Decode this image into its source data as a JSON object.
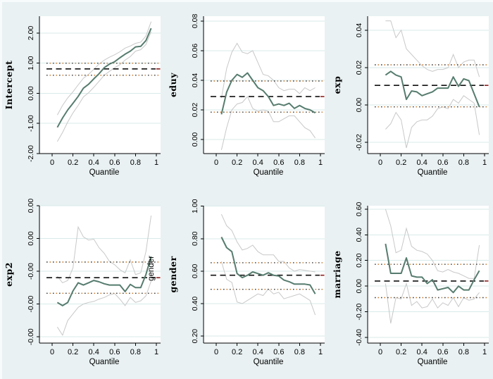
{
  "figure": {
    "background": "#e9f1f2",
    "plot_background": "#ffffff",
    "gridline_color": "#d8eaea",
    "axis_color": "#000000",
    "qr_line_color": "#567c6e",
    "ci_line_color": "#c8c8c8",
    "ols_line_color": "#111111",
    "ols_line_tip_color": "#8b1f1f",
    "ols_ci_dot_color_a": "#3a3a3a",
    "ols_ci_dot_color_b": "#c4762a",
    "window_edge_color": "#f7fbfb"
  },
  "chart_data": {
    "type": "line-panels",
    "layout": "2x3-grid",
    "grid": true,
    "legend": "none",
    "xlabel": "Quantile",
    "x_ticks": [
      0,
      0.2,
      0.4,
      0.6,
      0.8,
      1
    ],
    "x_tick_labels": [
      "0",
      "0.2",
      "0.4",
      "0.6",
      "0.8",
      "1"
    ],
    "x": [
      0.05,
      0.1,
      0.15,
      0.2,
      0.25,
      0.3,
      0.35,
      0.4,
      0.45,
      0.5,
      0.55,
      0.6,
      0.65,
      0.7,
      0.75,
      0.8,
      0.85,
      0.9,
      0.95
    ],
    "panels": [
      {
        "type": "line",
        "name": "Intercept",
        "ylabel": "Intercept",
        "ylim": [
          -2.0,
          2.56
        ],
        "yticks": [
          2,
          1,
          0,
          -1,
          -2
        ],
        "ytick_labels": [
          "2.00",
          "1.00",
          "0.00",
          "-1.00",
          "-2.00"
        ],
        "ols": 0.81,
        "ols_ci_upper": 1.0,
        "ols_ci_lower": 0.6,
        "series": [
          {
            "name": "qr_estimate",
            "values": [
              -1.13,
              -0.82,
              -0.55,
              -0.33,
              -0.1,
              0.17,
              0.3,
              0.48,
              0.65,
              0.85,
              0.97,
              1.05,
              1.18,
              1.3,
              1.4,
              1.54,
              1.56,
              1.75,
              2.16
            ]
          },
          {
            "name": "ci_upper",
            "values": [
              -0.72,
              -0.4,
              -0.15,
              0.05,
              0.28,
              0.5,
              0.63,
              0.8,
              0.97,
              1.1,
              1.2,
              1.28,
              1.38,
              1.5,
              1.57,
              1.66,
              1.7,
              1.9,
              2.38
            ]
          },
          {
            "name": "ci_lower",
            "values": [
              -1.6,
              -1.3,
              -0.95,
              -0.65,
              -0.4,
              -0.12,
              0.02,
              0.2,
              0.4,
              0.6,
              0.73,
              0.85,
              0.95,
              1.1,
              1.22,
              1.4,
              1.45,
              1.62,
              2.05
            ]
          }
        ]
      },
      {
        "type": "line",
        "name": "eduy",
        "ylabel": "eduy",
        "ylim": [
          -0.0095,
          0.0833
        ],
        "yticks": [
          0.08,
          0.06,
          0.04,
          0.02,
          0.0
        ],
        "ytick_labels": [
          "0.08",
          "0.06",
          "0.04",
          "0.02",
          "0.00"
        ],
        "ols": 0.029,
        "ols_ci_upper": 0.0395,
        "ols_ci_lower": 0.0185,
        "series": [
          {
            "name": "qr_estimate",
            "values": [
              0.017,
              0.032,
              0.04,
              0.044,
              0.042,
              0.045,
              0.04,
              0.035,
              0.033,
              0.029,
              0.023,
              0.024,
              0.023,
              0.0245,
              0.021,
              0.023,
              0.021,
              0.02,
              0.018
            ]
          },
          {
            "name": "ci_upper",
            "values": [
              0.028,
              0.048,
              0.059,
              0.065,
              0.059,
              0.058,
              0.06,
              0.052,
              0.044,
              0.043,
              0.04,
              0.035,
              0.033,
              0.034,
              0.034,
              0.031,
              0.035,
              0.033,
              0.035
            ]
          },
          {
            "name": "ci_lower",
            "values": [
              -0.007,
              0.008,
              0.02,
              0.024,
              0.025,
              0.029,
              0.021,
              0.019,
              0.02,
              0.019,
              0.012,
              0.012,
              0.014,
              0.016,
              0.016,
              0.012,
              0.008,
              0.006,
              0.001
            ]
          }
        ]
      },
      {
        "type": "line",
        "name": "exp",
        "ylabel": "exp",
        "ylim": [
          -0.026,
          0.0475
        ],
        "yticks": [
          0.04,
          0.02,
          0.0,
          -0.02
        ],
        "ytick_labels": [
          "0.04",
          "0.02",
          "0.00",
          "-0.02"
        ],
        "ols": 0.0105,
        "ols_ci_upper": 0.0215,
        "ols_ci_lower": -0.001,
        "series": [
          {
            "name": "qr_estimate",
            "values": [
              0.016,
              0.018,
              0.016,
              0.015,
              0.003,
              0.0075,
              0.007,
              0.005,
              0.006,
              0.007,
              0.009,
              0.009,
              0.009,
              0.015,
              0.01,
              0.014,
              0.013,
              0.006,
              -0.001
            ]
          },
          {
            "name": "ci_upper",
            "values": [
              0.045,
              0.045,
              0.036,
              0.04,
              0.03,
              0.027,
              0.024,
              0.021,
              0.019,
              0.018,
              0.019,
              0.019,
              0.02,
              0.027,
              0.02,
              0.023,
              0.024,
              0.024,
              0.015
            ]
          },
          {
            "name": "ci_lower",
            "values": [
              -0.013,
              -0.01,
              -0.004,
              -0.008,
              -0.023,
              -0.012,
              -0.009,
              -0.008,
              -0.008,
              -0.006,
              -0.002,
              -0.001,
              -0.002,
              0.003,
              0.001,
              0.005,
              0.003,
              0.001,
              -0.016
            ]
          }
        ]
      },
      {
        "type": "line",
        "name": "exp2",
        "ylabel": "exp2",
        "overlay_text": "gender",
        "ylim": [
          -0.000219,
          0.0002
        ],
        "yticks": [
          0.0002,
          0.0001,
          0.0,
          -0.0001,
          -0.0002
        ],
        "ytick_labels": [
          "0.00",
          "0.00",
          "-0.00",
          "-0.00",
          "-0.00"
        ],
        "ols": -1.95e-05,
        "ols_ci_upper": 2.8e-05,
        "ols_ci_lower": -6.7e-05,
        "series": [
          {
            "name": "qr_estimate",
            "values": [
              -9.5e-05,
              -0.000105,
              -9.5e-05,
              -6e-05,
              -3.5e-05,
              -4.2e-05,
              -3.5e-05,
              -2.8e-05,
              -3.2e-05,
              -3.8e-05,
              -4.2e-05,
              -4.2e-05,
              -4.2e-05,
              -6.2e-05,
              -4e-05,
              -5e-05,
              -5e-05,
              -1e-05,
              4.5e-05
            ]
          },
          {
            "name": "ci_upper",
            "values": [
              -1.5e-05,
              -3.5e-05,
              -2.8e-05,
              1e-05,
              0.000135,
              0.000105,
              9.5e-05,
              9.8e-05,
              7.2e-05,
              5.5e-05,
              3e-05,
              2e-05,
              5e-06,
              -5e-06,
              3.5e-05,
              -1e-05,
              -5e-06,
              6e-05,
              0.00017
            ]
          },
          {
            "name": "ci_lower",
            "values": [
              -0.00017,
              -0.000195,
              -0.00015,
              -0.00013,
              -0.00011,
              -0.0001,
              -9.5e-05,
              -9.2e-05,
              -8.5e-05,
              -8e-05,
              -7.2e-05,
              -6.8e-05,
              -8.5e-05,
              -0.000105,
              -8e-05,
              -9.5e-05,
              -9e-05,
              -7.5e-05,
              -3e-05
            ]
          }
        ]
      },
      {
        "type": "line",
        "name": "gender",
        "ylabel": "gender",
        "ylim": [
          0.157,
          1.003
        ],
        "yticks": [
          1.0,
          0.8,
          0.6,
          0.4,
          0.2
        ],
        "ytick_labels": [
          "1.00",
          "0.80",
          "0.60",
          "0.40",
          "0.20"
        ],
        "ols": 0.575,
        "ols_ci_upper": 0.652,
        "ols_ci_lower": 0.488,
        "series": [
          {
            "name": "qr_estimate",
            "values": [
              0.81,
              0.745,
              0.72,
              0.585,
              0.56,
              0.575,
              0.595,
              0.585,
              0.575,
              0.59,
              0.575,
              0.57,
              0.545,
              0.535,
              0.52,
              0.52,
              0.52,
              0.515,
              0.46
            ]
          },
          {
            "name": "ci_upper",
            "values": [
              0.95,
              0.88,
              0.85,
              0.78,
              0.73,
              0.74,
              0.76,
              0.72,
              0.7,
              0.7,
              0.7,
              0.66,
              0.66,
              0.62,
              0.6,
              0.61,
              0.605,
              0.6,
              0.595
            ]
          },
          {
            "name": "ci_lower",
            "values": [
              0.66,
              0.55,
              0.53,
              0.41,
              0.4,
              0.42,
              0.44,
              0.46,
              0.45,
              0.49,
              0.46,
              0.47,
              0.43,
              0.44,
              0.45,
              0.46,
              0.44,
              0.42,
              0.33
            ]
          }
        ]
      },
      {
        "type": "line",
        "name": "marriage",
        "ylabel": "marriage",
        "ylim": [
          -0.444,
          0.627
        ],
        "yticks": [
          0.6,
          0.4,
          0.2,
          0.0,
          -0.2,
          -0.4
        ],
        "ytick_labels": [
          "0.60",
          "0.40",
          "0.20",
          "0.00",
          "-0.20",
          "-0.40"
        ],
        "ols": 0.04,
        "ols_ci_upper": 0.17,
        "ols_ci_lower": -0.09,
        "series": [
          {
            "name": "qr_estimate",
            "values": [
              0.33,
              0.1,
              0.1,
              0.1,
              0.22,
              0.08,
              0.07,
              0.07,
              0.02,
              0.05,
              -0.03,
              -0.02,
              -0.01,
              -0.05,
              0.0,
              -0.03,
              -0.03,
              0.05,
              0.12
            ]
          },
          {
            "name": "ci_upper",
            "values": [
              0.6,
              0.47,
              0.26,
              0.28,
              0.45,
              0.31,
              0.28,
              0.27,
              0.25,
              0.2,
              0.12,
              0.11,
              0.13,
              0.11,
              0.1,
              0.08,
              0.06,
              0.06,
              0.32
            ]
          },
          {
            "name": "ci_lower",
            "values": [
              0.02,
              -0.29,
              -0.09,
              -0.1,
              0.02,
              -0.15,
              -0.12,
              -0.17,
              -0.16,
              -0.1,
              -0.17,
              -0.13,
              -0.15,
              -0.09,
              -0.16,
              -0.09,
              -0.11,
              -0.1,
              -0.05
            ]
          }
        ]
      }
    ]
  }
}
